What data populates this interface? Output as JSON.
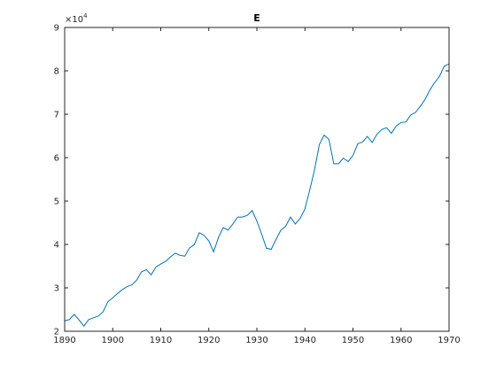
{
  "chart_data": {
    "type": "line",
    "title": "E",
    "xlabel": "",
    "ylabel": "",
    "y_exponent_label": {
      "base": "×10",
      "power": "4"
    },
    "xlim": [
      1890,
      1970
    ],
    "ylim": [
      20000,
      90000
    ],
    "x_ticks": [
      1890,
      1900,
      1910,
      1920,
      1930,
      1940,
      1950,
      1960,
      1970
    ],
    "y_ticks": [
      {
        "value": 20000,
        "label": "2"
      },
      {
        "value": 30000,
        "label": "3"
      },
      {
        "value": 40000,
        "label": "4"
      },
      {
        "value": 50000,
        "label": "5"
      },
      {
        "value": 60000,
        "label": "6"
      },
      {
        "value": 70000,
        "label": "7"
      },
      {
        "value": 80000,
        "label": "8"
      },
      {
        "value": 90000,
        "label": "9"
      }
    ],
    "grid": false,
    "box": true,
    "colors": {
      "line": "#0072bd",
      "axis": "#262626"
    },
    "series": [
      {
        "x": [
          1890,
          1891,
          1892,
          1893,
          1894,
          1895,
          1896,
          1897,
          1898,
          1899,
          1900,
          1901,
          1902,
          1903,
          1904,
          1905,
          1906,
          1907,
          1908,
          1909,
          1910,
          1911,
          1912,
          1913,
          1914,
          1915,
          1916,
          1917,
          1918,
          1919,
          1920,
          1921,
          1922,
          1923,
          1924,
          1925,
          1926,
          1927,
          1928,
          1929,
          1930,
          1931,
          1932,
          1933,
          1934,
          1935,
          1936,
          1937,
          1938,
          1939,
          1940,
          1941,
          1942,
          1943,
          1944,
          1945,
          1946,
          1947,
          1948,
          1949,
          1950,
          1951,
          1952,
          1953,
          1954,
          1955,
          1956,
          1957,
          1958,
          1959,
          1960,
          1961,
          1962,
          1963,
          1964,
          1965,
          1966,
          1967,
          1968,
          1969,
          1970
        ],
        "values": [
          22400,
          22700,
          23900,
          22600,
          21200,
          22700,
          23100,
          23500,
          24500,
          26800,
          27700,
          28700,
          29600,
          30300,
          30700,
          31800,
          33700,
          34200,
          33000,
          34800,
          35500,
          36100,
          37100,
          38000,
          37500,
          37300,
          39200,
          40000,
          42700,
          42100,
          40800,
          38300,
          41600,
          43900,
          43300,
          44700,
          46300,
          46300,
          46700,
          47800,
          45400,
          42400,
          39100,
          38900,
          41200,
          43300,
          44200,
          46300,
          44700,
          46000,
          48200,
          52500,
          57200,
          63000,
          65200,
          64200,
          58600,
          58600,
          59900,
          59100,
          60500,
          63200,
          63600,
          64900,
          63500,
          65400,
          66500,
          66900,
          65600,
          67300,
          68100,
          68200,
          69800,
          70400,
          71800,
          73400,
          75600,
          77300,
          78700,
          81100,
          81600
        ]
      }
    ]
  }
}
